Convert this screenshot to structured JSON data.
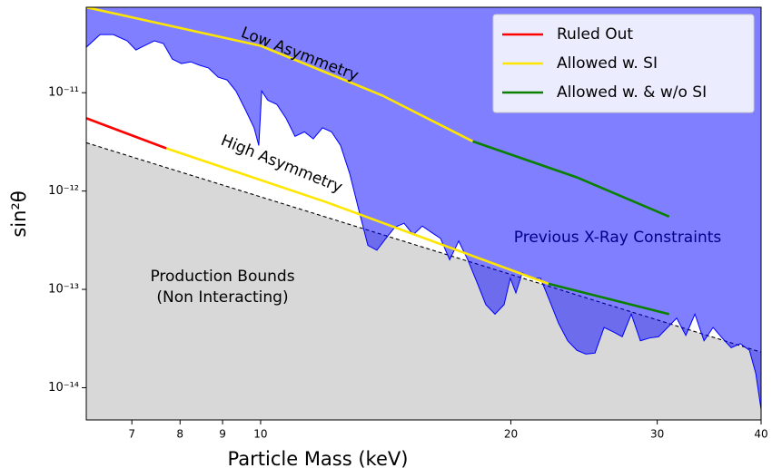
{
  "chart_data": {
    "type": "line",
    "xlabel": "Particle Mass (keV)",
    "ylabel": "sin²θ",
    "xscale": "log",
    "yscale": "log",
    "xlim": [
      6.17,
      40
    ],
    "ylim": [
      4.7e-15,
      7.4e-11
    ],
    "xticks": [
      7,
      8,
      9,
      10,
      20,
      30,
      40
    ],
    "yticks": [
      {
        "value": 1e-14,
        "label": "10⁻¹⁴"
      },
      {
        "value": 1e-13,
        "label": "10⁻¹³"
      },
      {
        "value": 1e-12,
        "label": "10⁻¹²"
      },
      {
        "value": 1e-11,
        "label": "10⁻¹¹"
      }
    ],
    "legend": "upper right",
    "regions": [
      {
        "label": [
          "Production Bounds",
          "(Non Interacting)"
        ],
        "color": "#d8d8d8",
        "edge": "dashed",
        "x": [
          6.17,
          40
        ],
        "values": [
          3.1e-12,
          2.3e-14
        ]
      },
      {
        "label": [
          "Previous X-Ray Constraints"
        ],
        "color": "#0000ff",
        "edge": "#0000ff",
        "x": [
          6.17,
          6.41,
          6.65,
          6.91,
          7.08,
          7.26,
          7.45,
          7.64,
          7.83,
          8.03,
          8.24,
          8.45,
          8.66,
          8.89,
          9.11,
          9.34,
          9.58,
          9.82,
          9.95,
          10.03,
          10.2,
          10.46,
          10.73,
          11.0,
          11.29,
          11.57,
          11.87,
          12.17,
          12.48,
          12.8,
          13.12,
          13.46,
          13.8,
          14.15,
          14.51,
          14.88,
          15.26,
          15.65,
          16.05,
          16.46,
          16.88,
          17.31,
          17.75,
          18.2,
          18.66,
          19.14,
          19.63,
          19.97,
          20.28,
          20.64,
          21.17,
          21.71,
          22.26,
          22.83,
          23.41,
          24.01,
          24.62,
          25.25,
          25.89,
          26.55,
          27.23,
          27.92,
          28.63,
          29.37,
          30.11,
          30.88,
          31.66,
          32.47,
          33.3,
          34.15,
          35.02,
          35.91,
          36.82,
          37.76,
          38.73,
          39.41,
          40.0
        ],
        "values": [
          2.9e-11,
          3.9e-11,
          3.9e-11,
          3.37e-11,
          2.72e-11,
          3.03e-11,
          3.37e-11,
          3.16e-11,
          2.2e-11,
          1.98e-11,
          2.06e-11,
          1.9e-11,
          1.78e-11,
          1.44e-11,
          1.35e-11,
          1.04e-11,
          6.8e-12,
          4.4e-12,
          2.9e-12,
          1.04e-11,
          8.4e-12,
          7.6e-12,
          5.5e-12,
          3.6e-12,
          4e-12,
          3.4e-12,
          4.4e-12,
          4e-12,
          2.9e-12,
          1.5e-12,
          6.5e-13,
          2.8e-13,
          2.5e-13,
          3.3e-13,
          4.3e-13,
          4.7e-13,
          3.6e-13,
          4.4e-13,
          3.8e-13,
          3.3e-13,
          2e-13,
          3.1e-13,
          2e-13,
          1.19e-13,
          7e-14,
          5.6e-14,
          7e-14,
          1.3e-13,
          9.2e-14,
          1.47e-13,
          1.3e-13,
          1.3e-13,
          7.7e-14,
          4.5e-14,
          3e-14,
          2.4e-14,
          2.2e-14,
          2.25e-14,
          4.1e-14,
          3.7e-14,
          3.3e-14,
          5.6e-14,
          3e-14,
          3.2e-14,
          3.3e-14,
          4.1e-14,
          5.1e-14,
          3.4e-14,
          5.6e-14,
          3e-14,
          4.1e-14,
          3.2e-14,
          2.55e-14,
          2.8e-14,
          2.4e-14,
          1.4e-14,
          6e-15
        ]
      }
    ],
    "annotations": [
      "Low Asymmetry",
      "High Asymmetry"
    ],
    "series": [
      {
        "name": "Ruled Out",
        "color": "#ff0000",
        "lines": [
          {
            "x": [
              6.17,
              7.7
            ],
            "values": [
              5.5e-12,
              2.72e-12
            ]
          }
        ]
      },
      {
        "name": "Allowed w. SI",
        "color": "#ffe600",
        "lines": [
          {
            "x": [
              6.17,
              10,
              14,
              18
            ],
            "values": [
              7.4e-11,
              3e-11,
              9.4e-12,
              3.2e-12
            ]
          },
          {
            "x": [
              7.7,
              12,
              22.2
            ],
            "values": [
              2.72e-12,
              7.7e-13,
              1.14e-13
            ]
          }
        ]
      },
      {
        "name": "Allowed w. & w/o SI",
        "color": "#0a8000",
        "lines": [
          {
            "x": [
              18,
              24,
              31
            ],
            "values": [
              3.2e-12,
              1.38e-12,
              5.5e-13
            ]
          },
          {
            "x": [
              22.2,
              31
            ],
            "values": [
              1.14e-13,
              5.6e-14
            ]
          }
        ]
      }
    ]
  }
}
